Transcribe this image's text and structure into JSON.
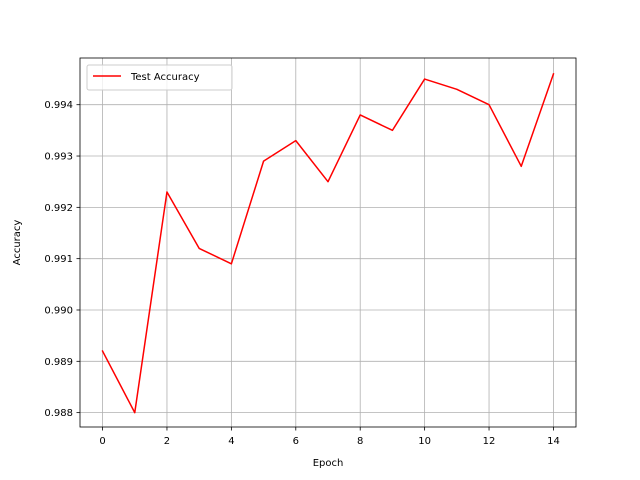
{
  "chart_data": {
    "type": "line",
    "title": "",
    "xlabel": "Epoch",
    "ylabel": "Accuracy",
    "xlim": [
      -0.7,
      14.7
    ],
    "ylim": [
      0.98772,
      0.99491
    ],
    "x_ticks": [
      0,
      2,
      4,
      6,
      8,
      10,
      12,
      14
    ],
    "x_tick_labels": [
      "0",
      "2",
      "4",
      "6",
      "8",
      "10",
      "12",
      "14"
    ],
    "y_ticks": [
      0.988,
      0.989,
      0.99,
      0.991,
      0.992,
      0.993,
      0.994
    ],
    "y_tick_labels": [
      "0.988",
      "0.989",
      "0.990",
      "0.991",
      "0.992",
      "0.993",
      "0.994"
    ],
    "grid": true,
    "legend_position": "upper-left",
    "series": [
      {
        "name": "Test Accuracy",
        "color": "#ff0000",
        "x": [
          0,
          1,
          2,
          3,
          4,
          5,
          6,
          7,
          8,
          9,
          10,
          11,
          12,
          13,
          14
        ],
        "values": [
          0.9892,
          0.988,
          0.9923,
          0.9912,
          0.9909,
          0.9929,
          0.9933,
          0.9925,
          0.9938,
          0.9935,
          0.9945,
          0.9943,
          0.994,
          0.9928,
          0.9946
        ]
      }
    ]
  }
}
